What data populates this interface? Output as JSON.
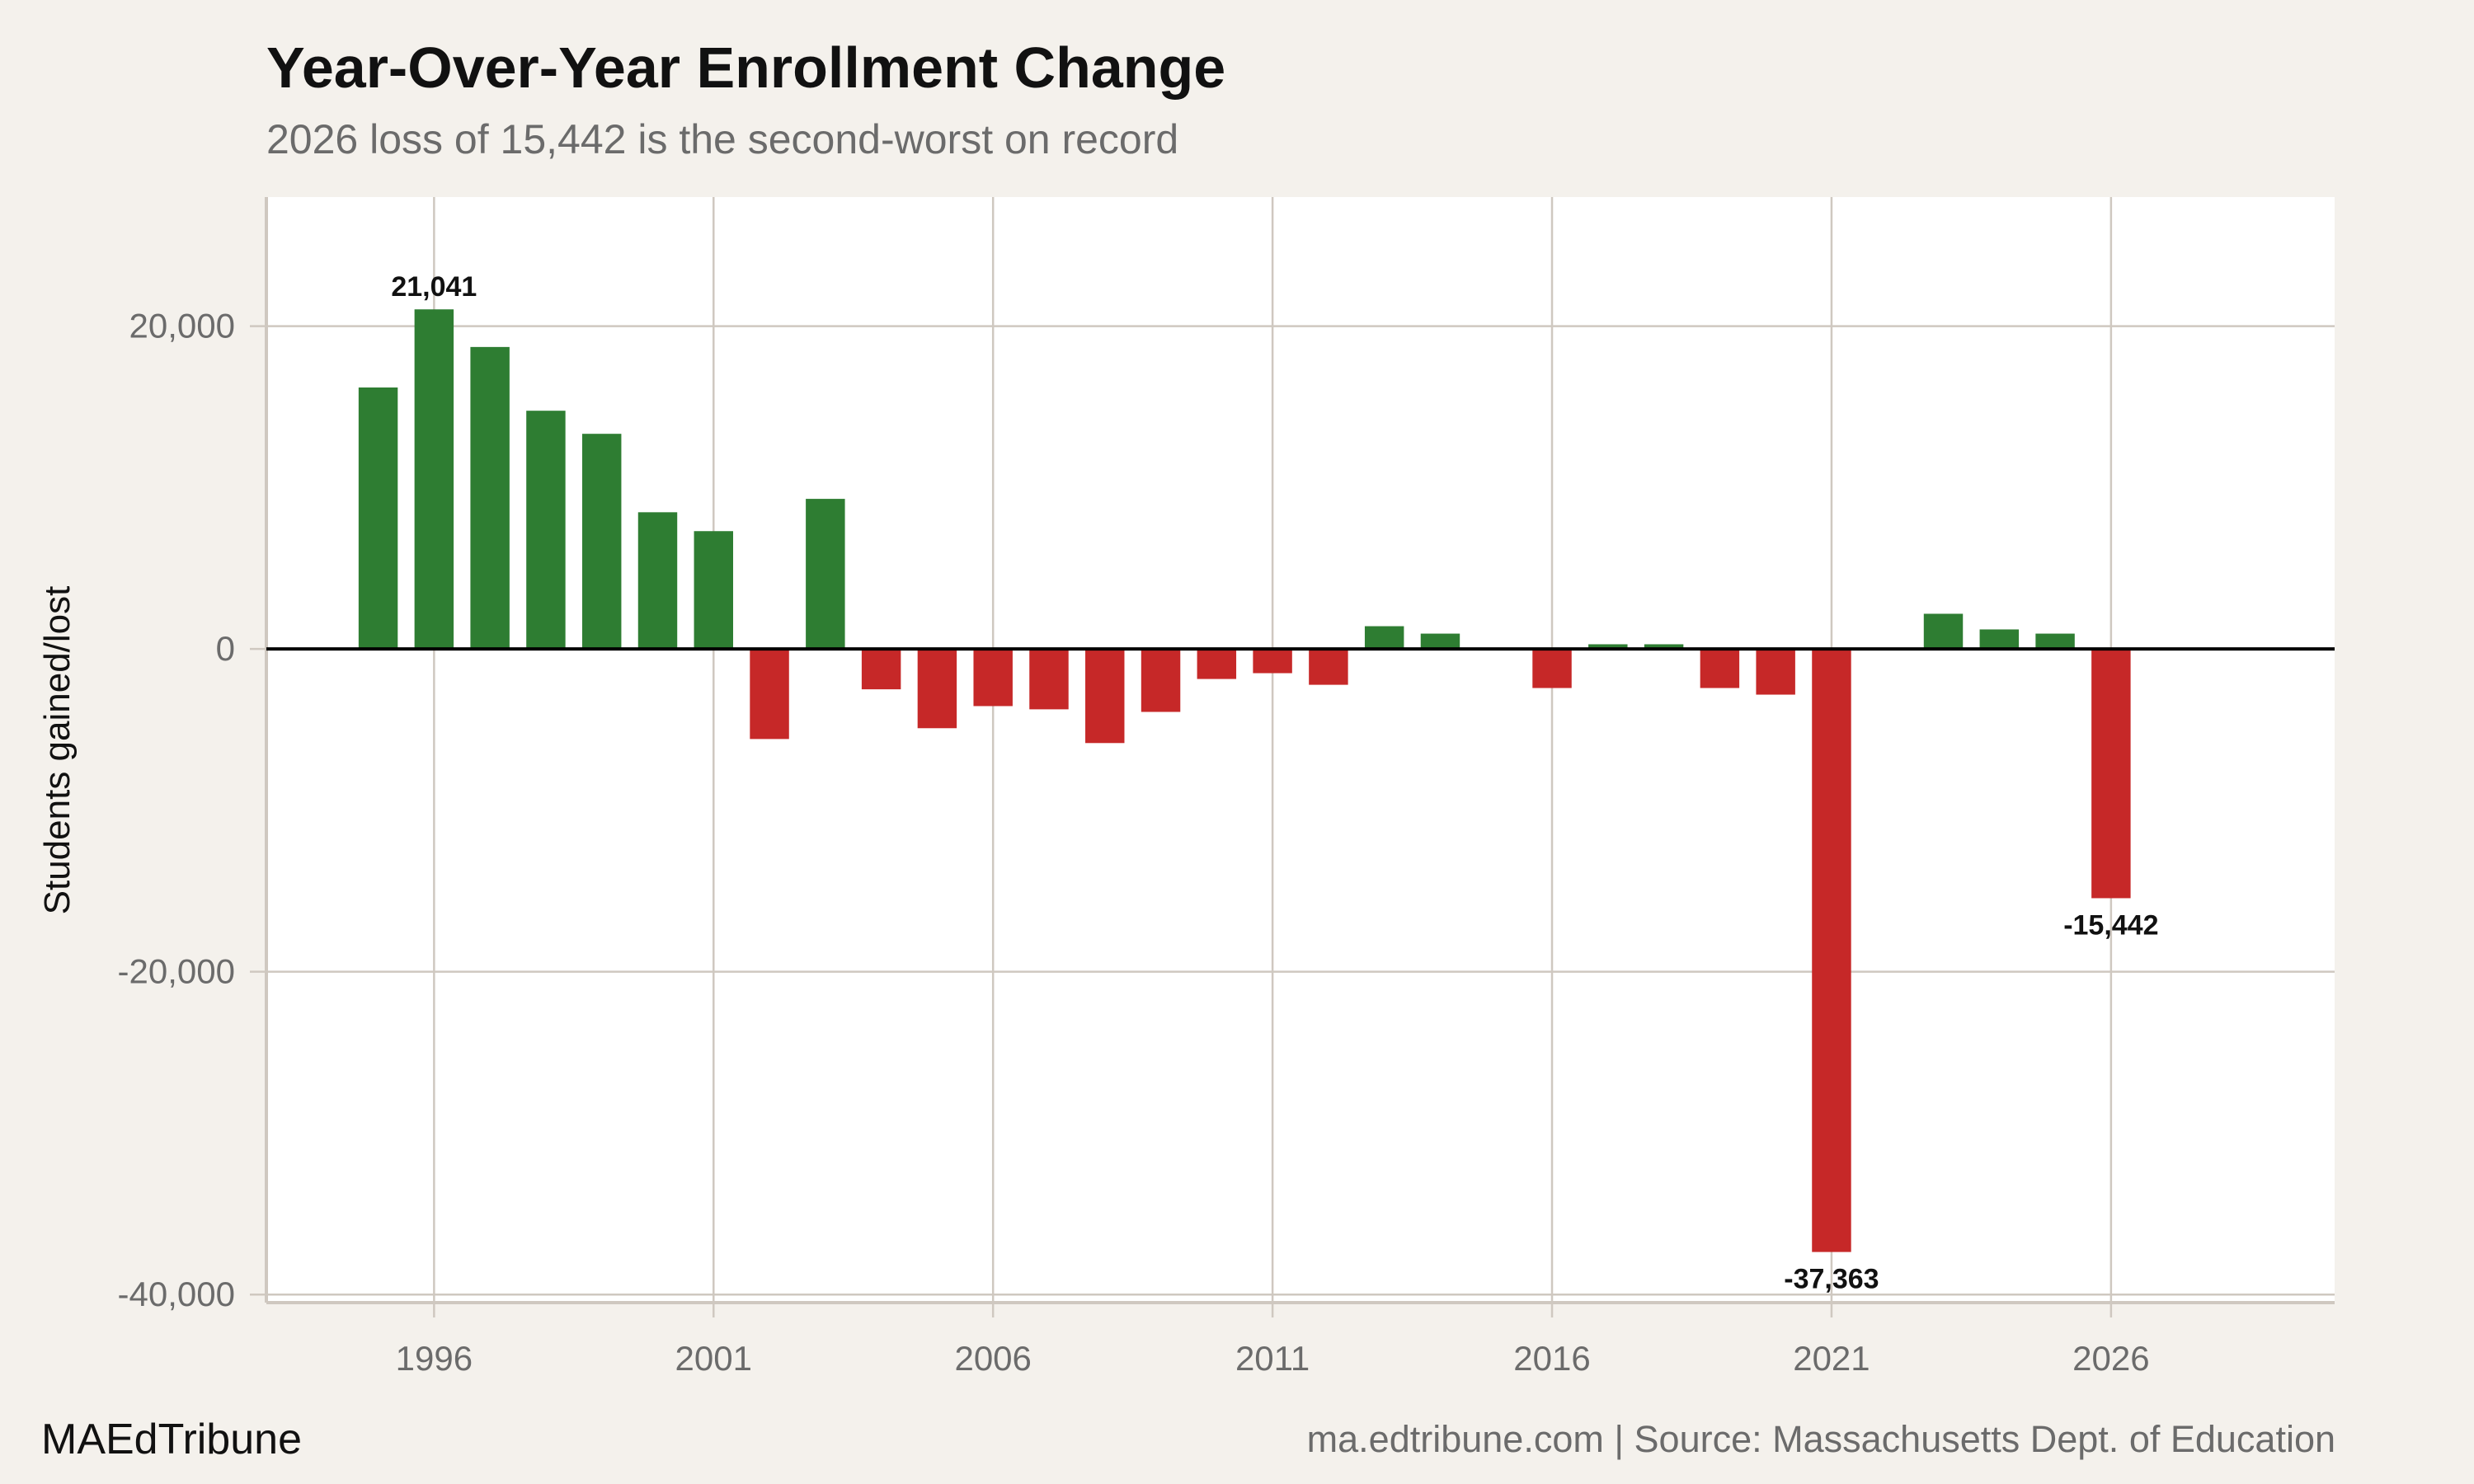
{
  "title": "Year-Over-Year Enrollment Change",
  "subtitle": "2026 loss of 15,442 is the second-worst on record",
  "brand": "MAEdTribune",
  "source": "ma.edtribune.com | Source: Massachusetts Dept. of Education",
  "colors": {
    "background": "#f4f1ec",
    "gain": "#2e7d32",
    "loss": "#c62828",
    "grid": "#cfc8c0",
    "zero_line": "#000000"
  },
  "chart_data": {
    "type": "bar",
    "title": "Year-Over-Year Enrollment Change",
    "subtitle": "2026 loss of 15,442 is the second-worst on record",
    "xlabel": "",
    "ylabel": "Students gained/lost",
    "x": [
      1995,
      1996,
      1997,
      1998,
      1999,
      2000,
      2001,
      2002,
      2003,
      2004,
      2005,
      2006,
      2007,
      2008,
      2009,
      2010,
      2011,
      2012,
      2013,
      2014,
      2015,
      2016,
      2017,
      2018,
      2019,
      2020,
      2021,
      2022,
      2023,
      2024,
      2025,
      2026
    ],
    "values": [
      16200,
      21041,
      18710,
      14760,
      13330,
      8470,
      7300,
      -5580,
      9300,
      -2500,
      -4910,
      -3540,
      -3740,
      -5830,
      -3900,
      -1860,
      -1500,
      -2220,
      1410,
      950,
      0,
      -2420,
      290,
      290,
      -2420,
      -2830,
      -37363,
      0,
      2180,
      1210,
      950,
      -15442
    ],
    "xlim": [
      1993,
      2030
    ],
    "ylim": [
      -40500,
      28000
    ],
    "xticks": [
      "1996",
      "2001",
      "2006",
      "2011",
      "2016",
      "2021",
      "2026"
    ],
    "yticks": [
      "20,000",
      "0",
      "-20,000",
      "-40,000"
    ],
    "ytick_values": [
      20000,
      0,
      -20000,
      -40000
    ],
    "grid": true,
    "data_labels": [
      {
        "year": 1996,
        "text": "21,041"
      },
      {
        "year": 2021,
        "text": "-37,363"
      },
      {
        "year": 2026,
        "text": "-15,442"
      }
    ]
  }
}
